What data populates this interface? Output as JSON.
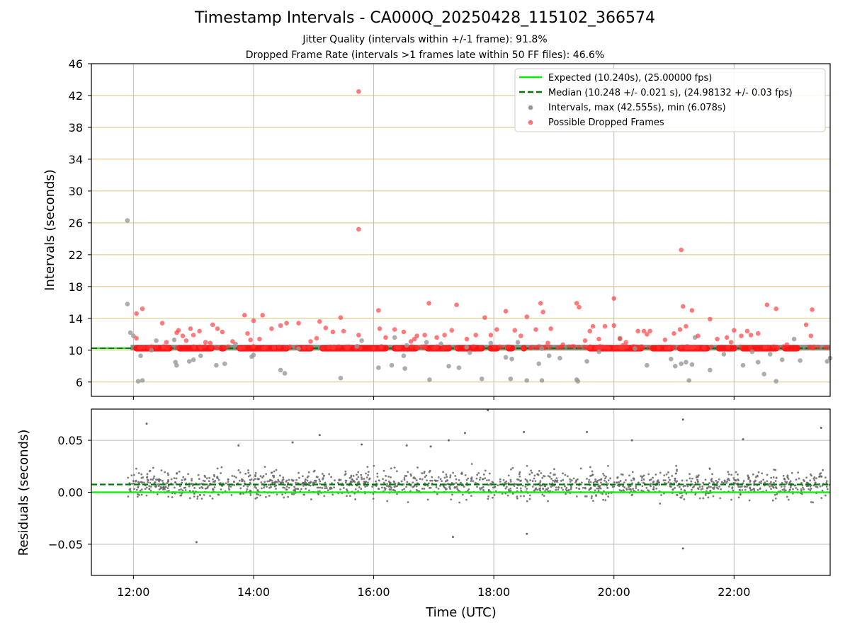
{
  "chart_data": [
    {
      "type": "scatter",
      "title": "Timestamp Intervals - CA000Q_20250428_115102_366574",
      "subtitle_lines": [
        "Jitter Quality (intervals within +/-1 frame): 91.8%",
        "Dropped Frame Rate (intervals >1 frames late within 50 FF files): 46.6%"
      ],
      "ylabel": "Intervals (seconds)",
      "xlabel": "",
      "yticks": [
        6,
        10,
        14,
        18,
        22,
        26,
        30,
        34,
        38,
        42,
        46
      ],
      "ylim": [
        4.2,
        46
      ],
      "xlim_hours": [
        11.3,
        23.6
      ],
      "xticks_hours": [
        12,
        14,
        16,
        18,
        20,
        22
      ],
      "xtick_labels": [
        "12:00",
        "14:00",
        "16:00",
        "18:00",
        "20:00",
        "22:00"
      ],
      "grid": "vertical gray lines, horizontal goldenrod lines",
      "legend_position": "top-right",
      "legend": [
        {
          "label": "Expected (10.240s), (25.00000 fps)",
          "style": "solid-line",
          "color": "#00ee00"
        },
        {
          "label": "Median (10.248 +/- 0.021 s), (24.98132 +/- 0.03 fps)",
          "style": "dashed-line",
          "color": "#007700"
        },
        {
          "label": "Intervals, max (42.555s), min (6.078s)",
          "style": "marker",
          "color": "#999999"
        },
        {
          "label": "Possible Dropped Frames",
          "style": "marker",
          "color": "#ff3333"
        }
      ],
      "expected_value": 10.24,
      "median_value": 10.248,
      "series": [
        {
          "name": "Intervals, max (42.555s), min (6.078s)",
          "color": "#999999",
          "points": [
            [
              11.9,
              26.3
            ],
            [
              11.9,
              15.8
            ],
            [
              11.95,
              12.2
            ],
            [
              12.0,
              11.8
            ],
            [
              12.08,
              6.1
            ],
            [
              12.15,
              6.2
            ],
            [
              12.12,
              9.3
            ],
            [
              12.3,
              10.0
            ],
            [
              12.38,
              11.2
            ],
            [
              12.7,
              8.5
            ],
            [
              12.72,
              8.1
            ],
            [
              12.68,
              11.3
            ],
            [
              12.93,
              8.6
            ],
            [
              13.0,
              8.8
            ],
            [
              13.12,
              9.3
            ],
            [
              13.38,
              8.1
            ],
            [
              13.52,
              8.3
            ],
            [
              13.7,
              10.8
            ],
            [
              13.97,
              9.2
            ],
            [
              14.0,
              9.4
            ],
            [
              14.45,
              7.5
            ],
            [
              14.52,
              7.1
            ],
            [
              14.75,
              10.2
            ],
            [
              15.45,
              6.5
            ],
            [
              15.72,
              10.5
            ],
            [
              15.8,
              11.2
            ],
            [
              16.08,
              7.8
            ],
            [
              16.3,
              8.1
            ],
            [
              16.35,
              11.6
            ],
            [
              16.5,
              9.3
            ],
            [
              16.52,
              7.7
            ],
            [
              16.55,
              10.6
            ],
            [
              16.88,
              11.0
            ],
            [
              16.93,
              6.3
            ],
            [
              17.12,
              10.8
            ],
            [
              17.25,
              8.0
            ],
            [
              17.42,
              7.8
            ],
            [
              17.55,
              10.4
            ],
            [
              17.6,
              9.7
            ],
            [
              17.8,
              6.4
            ],
            [
              17.95,
              10.9
            ],
            [
              18.2,
              9.1
            ],
            [
              18.28,
              6.4
            ],
            [
              18.3,
              8.9
            ],
            [
              18.4,
              11.0
            ],
            [
              18.55,
              6.2
            ],
            [
              18.75,
              8.3
            ],
            [
              18.8,
              6.2
            ],
            [
              18.8,
              10.2
            ],
            [
              18.92,
              9.3
            ],
            [
              19.1,
              9.0
            ],
            [
              19.38,
              6.3
            ],
            [
              19.4,
              6.1
            ],
            [
              19.55,
              8.6
            ],
            [
              19.75,
              9.8
            ],
            [
              20.1,
              11.4
            ],
            [
              20.35,
              10.2
            ],
            [
              20.55,
              8.1
            ],
            [
              20.95,
              8.9
            ],
            [
              21.02,
              8.0
            ],
            [
              21.12,
              8.3
            ],
            [
              21.2,
              8.5
            ],
            [
              21.25,
              6.2
            ],
            [
              21.3,
              8.2
            ],
            [
              21.35,
              11.6
            ],
            [
              21.6,
              7.5
            ],
            [
              21.83,
              9.5
            ],
            [
              22.15,
              8.1
            ],
            [
              22.3,
              9.8
            ],
            [
              22.4,
              8.5
            ],
            [
              22.5,
              7.0
            ],
            [
              22.6,
              9.5
            ],
            [
              22.7,
              6.1
            ],
            [
              22.8,
              8.8
            ],
            [
              23.0,
              11.4
            ],
            [
              23.1,
              8.7
            ],
            [
              23.55,
              8.6
            ],
            [
              23.6,
              9.0
            ]
          ]
        },
        {
          "name": "Possible Dropped Frames",
          "color": "#ff3333",
          "points": [
            [
              12.05,
              14.6
            ],
            [
              12.15,
              15.2
            ],
            [
              12.05,
              11.5
            ],
            [
              12.48,
              13.4
            ],
            [
              12.72,
              12.2
            ],
            [
              12.75,
              12.5
            ],
            [
              12.82,
              11.8
            ],
            [
              12.88,
              11.2
            ],
            [
              12.95,
              12.7
            ],
            [
              13.0,
              11.9
            ],
            [
              13.1,
              12.4
            ],
            [
              13.2,
              11.0
            ],
            [
              13.28,
              10.9
            ],
            [
              13.32,
              13.2
            ],
            [
              13.4,
              12.7
            ],
            [
              13.48,
              12.3
            ],
            [
              13.85,
              14.4
            ],
            [
              13.9,
              12.1
            ],
            [
              13.95,
              11.3
            ],
            [
              14.0,
              13.7
            ],
            [
              14.1,
              11.4
            ],
            [
              14.15,
              14.4
            ],
            [
              14.3,
              12.7
            ],
            [
              14.45,
              13.1
            ],
            [
              14.55,
              13.4
            ],
            [
              14.75,
              13.4
            ],
            [
              15.1,
              13.6
            ],
            [
              15.2,
              12.8
            ],
            [
              15.32,
              12.3
            ],
            [
              15.45,
              14.1
            ],
            [
              15.5,
              12.4
            ],
            [
              15.75,
              42.5
            ],
            [
              15.75,
              25.2
            ],
            [
              15.75,
              11.9
            ],
            [
              16.08,
              15.0
            ],
            [
              16.1,
              12.7
            ],
            [
              16.2,
              11.6
            ],
            [
              16.35,
              12.6
            ],
            [
              16.5,
              12.3
            ],
            [
              16.68,
              11.4
            ],
            [
              16.72,
              11.8
            ],
            [
              16.85,
              11.9
            ],
            [
              16.92,
              15.9
            ],
            [
              17.18,
              11.9
            ],
            [
              17.3,
              12.5
            ],
            [
              17.38,
              15.7
            ],
            [
              17.55,
              11.4
            ],
            [
              17.7,
              11.9
            ],
            [
              17.85,
              14.1
            ],
            [
              17.95,
              11.9
            ],
            [
              18.05,
              12.6
            ],
            [
              18.2,
              14.9
            ],
            [
              18.35,
              12.5
            ],
            [
              18.45,
              11.8
            ],
            [
              18.55,
              14.2
            ],
            [
              18.7,
              12.6
            ],
            [
              18.78,
              15.9
            ],
            [
              18.82,
              14.8
            ],
            [
              18.95,
              12.7
            ],
            [
              19.15,
              10.7
            ],
            [
              19.38,
              15.9
            ],
            [
              19.42,
              15.4
            ],
            [
              19.52,
              11.2
            ],
            [
              19.6,
              12.4
            ],
            [
              19.65,
              13.0
            ],
            [
              19.75,
              11.4
            ],
            [
              19.85,
              13.0
            ],
            [
              20.0,
              16.5
            ],
            [
              20.0,
              13.1
            ],
            [
              20.1,
              11.5
            ],
            [
              20.2,
              11.0
            ],
            [
              20.4,
              12.4
            ],
            [
              20.5,
              12.4
            ],
            [
              20.55,
              12.0
            ],
            [
              20.6,
              12.4
            ],
            [
              21.0,
              12.1
            ],
            [
              21.1,
              12.6
            ],
            [
              21.12,
              22.6
            ],
            [
              21.15,
              15.5
            ],
            [
              21.2,
              13.0
            ],
            [
              21.3,
              15.0
            ],
            [
              21.4,
              11.8
            ],
            [
              21.6,
              13.9
            ],
            [
              21.72,
              11.4
            ],
            [
              21.88,
              11.6
            ],
            [
              22.0,
              12.5
            ],
            [
              22.12,
              11.8
            ],
            [
              22.22,
              12.4
            ],
            [
              22.28,
              11.9
            ],
            [
              22.4,
              12.1
            ],
            [
              22.55,
              15.7
            ],
            [
              22.7,
              15.2
            ],
            [
              23.2,
              13.2
            ],
            [
              23.28,
              11.8
            ],
            [
              23.3,
              15.1
            ],
            [
              12.55,
              11.0
            ],
            [
              13.65,
              11.1
            ],
            [
              14.95,
              11.1
            ],
            [
              15.05,
              11.5
            ],
            [
              16.62,
              11.1
            ],
            [
              17.05,
              11.6
            ],
            [
              18.9,
              10.9
            ],
            [
              20.15,
              10.6
            ],
            [
              20.85,
              11.3
            ],
            [
              21.95,
              11.0
            ],
            [
              22.88,
              10.7
            ]
          ]
        }
      ],
      "band": {
        "name": "dropped frames band",
        "y": 10.24,
        "x_range_hours": [
          12.0,
          23.6
        ],
        "color": "#ff1111"
      }
    },
    {
      "type": "scatter",
      "title": "",
      "ylabel": "Residuals (seconds)",
      "xlabel": "Time (UTC)",
      "yticks": [
        -0.05,
        0.0,
        0.05
      ],
      "ytick_labels": [
        "−0.05",
        "0.00",
        "0.05"
      ],
      "ylim": [
        -0.08,
        0.08
      ],
      "xlim_hours": [
        11.3,
        23.6
      ],
      "xticks_hours": [
        12,
        14,
        16,
        18,
        20,
        22
      ],
      "xtick_labels": [
        "12:00",
        "14:00",
        "16:00",
        "18:00",
        "20:00",
        "22:00"
      ],
      "expected_value": 0.0,
      "median_value": 0.0075,
      "series": [
        {
          "name": "Residuals",
          "color": "#666666",
          "points": [
            [
              12.22,
              0.066
            ],
            [
              13.05,
              -0.048
            ],
            [
              13.75,
              0.045
            ],
            [
              14.65,
              0.048
            ],
            [
              15.1,
              0.055
            ],
            [
              15.8,
              0.046
            ],
            [
              16.95,
              0.044
            ],
            [
              17.25,
              0.05
            ],
            [
              17.52,
              0.057
            ],
            [
              17.9,
              0.079
            ],
            [
              18.5,
              0.058
            ],
            [
              19.55,
              0.058
            ],
            [
              21.15,
              0.07
            ],
            [
              21.15,
              -0.054
            ],
            [
              22.15,
              0.051
            ],
            [
              23.45,
              0.062
            ],
            [
              16.55,
              0.045
            ],
            [
              18.55,
              -0.04
            ],
            [
              17.32,
              -0.043
            ],
            [
              20.3,
              0.05
            ]
          ]
        }
      ],
      "cloud": {
        "center": 0.0075,
        "spread_sd": 0.011,
        "x_range_hours": [
          11.9,
          23.6
        ]
      }
    }
  ]
}
